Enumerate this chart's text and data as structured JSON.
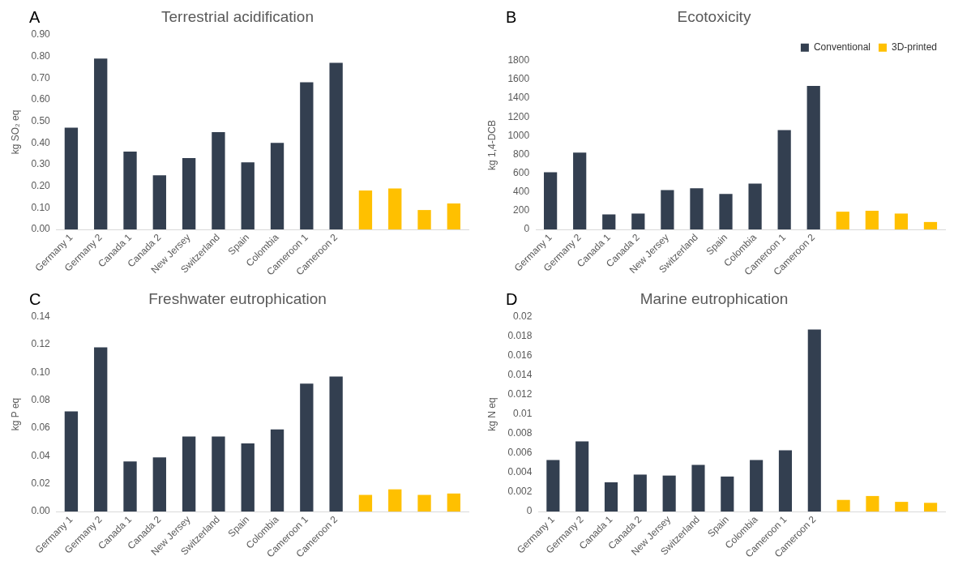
{
  "chart_data": [
    {
      "type": "bar",
      "title": "Terrestrial acidification",
      "ylabel": "kg SO₂ eq",
      "annotations": [
        "A"
      ],
      "categories": [
        "Germany 1",
        "Germany 2",
        "Canada 1",
        "Canada 2",
        "New Jersey",
        "Switzerland",
        "Spain",
        "Colombia",
        "Cameroon 1",
        "Cameroon 2",
        null,
        null,
        null,
        null
      ],
      "series": [
        {
          "color": "#333f50",
          "values": [
            0.47,
            0.79,
            0.36,
            0.25,
            0.33,
            0.45,
            0.31,
            0.4,
            0.68,
            0.77,
            null,
            null,
            null,
            null
          ]
        },
        {
          "color": "#ffc000",
          "values": [
            null,
            null,
            null,
            null,
            null,
            null,
            null,
            null,
            null,
            null,
            0.18,
            0.19,
            0.09,
            0.12
          ]
        }
      ],
      "ylim": [
        0,
        0.9
      ],
      "yticks": [
        {
          "value": 0,
          "label": "0.00"
        },
        {
          "value": 0.1,
          "label": "0.10"
        },
        {
          "value": 0.2,
          "label": "0.20"
        },
        {
          "value": 0.3,
          "label": "0.30"
        },
        {
          "value": 0.4,
          "label": "0.40"
        },
        {
          "value": 0.5,
          "label": "0.50"
        },
        {
          "value": 0.6,
          "label": "0.60"
        },
        {
          "value": 0.7,
          "label": "0.70"
        },
        {
          "value": 0.8,
          "label": "0.80"
        },
        {
          "value": 0.9,
          "label": "0.90"
        }
      ],
      "grid": false,
      "legend": false
    },
    {
      "type": "bar",
      "title": "Ecotoxicity",
      "ylabel": "kg 1,4-DCB",
      "annotations": [
        "B"
      ],
      "categories": [
        "Germany 1",
        "Germany 2",
        "Canada 1",
        "Canada 2",
        "New Jersey",
        "Switzerland",
        "Spain",
        "Colombia",
        "Cameroon 1",
        "Cameroon 2",
        null,
        null,
        null,
        null
      ],
      "series": [
        {
          "name": "Conventional",
          "color": "#333f50",
          "values": [
            610,
            820,
            160,
            170,
            420,
            440,
            380,
            490,
            1060,
            1530,
            null,
            null,
            null,
            null
          ]
        },
        {
          "name": "3D-printed",
          "color": "#ffc000",
          "values": [
            null,
            null,
            null,
            null,
            null,
            null,
            null,
            null,
            null,
            null,
            190,
            200,
            170,
            80
          ]
        }
      ],
      "ylim": [
        0,
        1800
      ],
      "yticks": [
        0,
        200,
        400,
        600,
        800,
        1000,
        1200,
        1400,
        1600,
        1800
      ],
      "grid": false,
      "legend": "top right"
    },
    {
      "type": "bar",
      "title": "Freshwater eutrophication",
      "ylabel": "kg P eq",
      "annotations": [
        "C"
      ],
      "categories": [
        "Germany 1",
        "Germany 2",
        "Canada 1",
        "Canada 2",
        "New Jersey",
        "Switzerland",
        "Spain",
        "Colombia",
        "Cameroon 1",
        "Cameroon 2",
        null,
        null,
        null,
        null
      ],
      "series": [
        {
          "color": "#333f50",
          "values": [
            0.072,
            0.118,
            0.036,
            0.039,
            0.054,
            0.054,
            0.049,
            0.059,
            0.092,
            0.097,
            null,
            null,
            null,
            null
          ]
        },
        {
          "color": "#ffc000",
          "values": [
            null,
            null,
            null,
            null,
            null,
            null,
            null,
            null,
            null,
            null,
            0.012,
            0.016,
            0.012,
            0.013
          ]
        }
      ],
      "ylim": [
        0,
        0.14
      ],
      "yticks": [
        {
          "value": 0,
          "label": "0.00"
        },
        {
          "value": 0.02,
          "label": "0.02"
        },
        {
          "value": 0.04,
          "label": "0.04"
        },
        {
          "value": 0.06,
          "label": "0.06"
        },
        {
          "value": 0.08,
          "label": "0.08"
        },
        {
          "value": 0.1,
          "label": "0.10"
        },
        {
          "value": 0.12,
          "label": "0.12"
        },
        {
          "value": 0.14,
          "label": "0.14"
        }
      ],
      "grid": false,
      "legend": false
    },
    {
      "type": "bar",
      "title": "Marine eutrophication",
      "ylabel": "kg N eq",
      "annotations": [
        "D"
      ],
      "categories": [
        "Germany 1",
        "Germany 2",
        "Canada 1",
        "Canada 2",
        "New Jersey",
        "Switzerland",
        "Spain",
        "Colombia",
        "Cameroon 1",
        "Cameroon 2",
        null,
        null,
        null,
        null
      ],
      "series": [
        {
          "color": "#333f50",
          "values": [
            0.0053,
            0.0072,
            0.003,
            0.0038,
            0.0037,
            0.0048,
            0.0036,
            0.0053,
            0.0063,
            0.0187,
            null,
            null,
            null,
            null
          ]
        },
        {
          "color": "#ffc000",
          "values": [
            null,
            null,
            null,
            null,
            null,
            null,
            null,
            null,
            null,
            null,
            0.0012,
            0.0016,
            0.001,
            0.0009
          ]
        }
      ],
      "ylim": [
        0,
        0.02
      ],
      "yticks": [
        0,
        0.002,
        0.004,
        0.006,
        0.008,
        0.01,
        0.012,
        0.014,
        0.016,
        0.018,
        0.02
      ],
      "grid": false,
      "legend": false
    }
  ]
}
